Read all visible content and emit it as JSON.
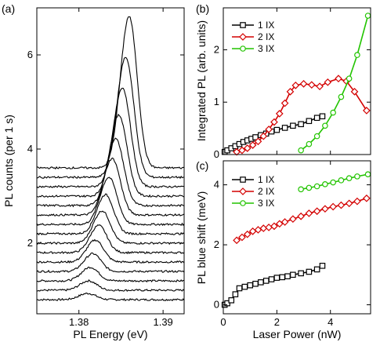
{
  "figure": {
    "background": "#ffffff",
    "axis_color": "#000000"
  },
  "chart_data": [
    {
      "id": "a",
      "panel_label": "(a)",
      "type": "line",
      "subtype": "stacked-spectra",
      "xlabel": "PL Energy (eV)",
      "ylabel": "PL counts (per 1 s)",
      "xlim": [
        1.375,
        1.3925
      ],
      "ylim": [
        0.5,
        7.0
      ],
      "x_ticks": [
        1.38,
        1.39
      ],
      "x_tick_labels": [
        "1.38",
        "1.39"
      ],
      "y_ticks": [
        2,
        4,
        6
      ],
      "y_tick_labels": [
        "2",
        "4",
        "6"
      ],
      "line_color": "#000000",
      "grid": false,
      "spectra": [
        {
          "baseline": 0.8,
          "peak_energy": 1.3812,
          "peak_height": 0.12
        },
        {
          "baseline": 1.0,
          "peak_energy": 1.3813,
          "peak_height": 0.18
        },
        {
          "baseline": 1.2,
          "peak_energy": 1.3815,
          "peak_height": 0.26
        },
        {
          "baseline": 1.4,
          "peak_energy": 1.3818,
          "peak_height": 0.34
        },
        {
          "baseline": 1.6,
          "peak_energy": 1.3821,
          "peak_height": 0.42
        },
        {
          "baseline": 1.8,
          "peak_energy": 1.3825,
          "peak_height": 0.52
        },
        {
          "baseline": 2.0,
          "peak_energy": 1.3829,
          "peak_height": 0.62
        },
        {
          "baseline": 2.2,
          "peak_energy": 1.3833,
          "peak_height": 0.75
        },
        {
          "baseline": 2.4,
          "peak_energy": 1.3837,
          "peak_height": 0.9
        },
        {
          "baseline": 2.6,
          "peak_energy": 1.3841,
          "peak_height": 1.08
        },
        {
          "baseline": 2.8,
          "peak_energy": 1.3845,
          "peak_height": 1.28
        },
        {
          "baseline": 3.0,
          "peak_energy": 1.3849,
          "peak_height": 1.55
        },
        {
          "baseline": 3.2,
          "peak_energy": 1.3853,
          "peak_height": 1.9
        },
        {
          "baseline": 3.4,
          "peak_energy": 1.3857,
          "peak_height": 2.3
        },
        {
          "baseline": 3.6,
          "peak_energy": 1.3861,
          "peak_height": 2.9
        }
      ]
    },
    {
      "id": "b",
      "panel_label": "(b)",
      "type": "line",
      "xlabel": "",
      "ylabel": "Integrated PL (arb. units)",
      "xlim": [
        0,
        5.5
      ],
      "ylim": [
        0,
        2.8
      ],
      "x_ticks": [
        0,
        2,
        4
      ],
      "x_tick_labels": [
        "",
        "",
        ""
      ],
      "y_ticks": [
        0,
        1,
        2
      ],
      "y_tick_labels": [
        "0",
        "1",
        "2"
      ],
      "grid": false,
      "legend": {
        "position": "top-left"
      },
      "series": [
        {
          "name": "1 IX",
          "color": "#000000",
          "marker": "square",
          "x": [
            0.05,
            0.15,
            0.3,
            0.45,
            0.6,
            0.75,
            0.9,
            1.05,
            1.2,
            1.4,
            1.6,
            1.8,
            2.0,
            2.3,
            2.6,
            2.9,
            3.2,
            3.5,
            3.7
          ],
          "y": [
            0.05,
            0.08,
            0.12,
            0.16,
            0.2,
            0.24,
            0.27,
            0.3,
            0.33,
            0.37,
            0.4,
            0.44,
            0.47,
            0.51,
            0.55,
            0.58,
            0.64,
            0.7,
            0.73
          ]
        },
        {
          "name": "2 IX",
          "color": "#d40000",
          "marker": "diamond",
          "x": [
            0.5,
            0.7,
            0.9,
            1.1,
            1.3,
            1.5,
            1.7,
            1.9,
            2.1,
            2.3,
            2.5,
            2.7,
            3.0,
            3.3,
            3.6,
            3.9,
            4.3,
            4.6,
            4.9,
            5.35
          ],
          "y": [
            0.05,
            0.08,
            0.12,
            0.18,
            0.25,
            0.35,
            0.48,
            0.62,
            0.78,
            0.98,
            1.2,
            1.32,
            1.35,
            1.33,
            1.3,
            1.38,
            1.45,
            1.4,
            1.2,
            0.84
          ]
        },
        {
          "name": "3 IX",
          "color": "#22c400",
          "marker": "circle",
          "x": [
            2.9,
            3.2,
            3.5,
            3.8,
            4.1,
            4.4,
            4.7,
            5.0,
            5.4
          ],
          "y": [
            0.08,
            0.2,
            0.35,
            0.55,
            0.8,
            1.1,
            1.45,
            1.9,
            2.65
          ]
        }
      ]
    },
    {
      "id": "c",
      "panel_label": "(c)",
      "type": "line",
      "xlabel": "Laser Power  (nW)",
      "ylabel": "PL blue shift  (meV)",
      "xlim": [
        0,
        5.5
      ],
      "ylim": [
        -0.3,
        4.8
      ],
      "x_ticks": [
        0,
        2,
        4
      ],
      "x_tick_labels": [
        "0",
        "2",
        "4"
      ],
      "y_ticks": [
        0,
        2,
        4
      ],
      "y_tick_labels": [
        "0",
        "2",
        "4"
      ],
      "grid": false,
      "legend": {
        "position": "top-left"
      },
      "series": [
        {
          "name": "1 IX",
          "color": "#000000",
          "marker": "square",
          "x": [
            0.05,
            0.15,
            0.3,
            0.45,
            0.6,
            0.8,
            1.0,
            1.2,
            1.4,
            1.6,
            1.8,
            2.0,
            2.2,
            2.4,
            2.6,
            2.9,
            3.2,
            3.5,
            3.7
          ],
          "y": [
            0.0,
            0.05,
            0.15,
            0.35,
            0.55,
            0.6,
            0.65,
            0.7,
            0.75,
            0.8,
            0.85,
            0.9,
            0.92,
            0.95,
            1.0,
            1.05,
            1.1,
            1.18,
            1.3
          ]
        },
        {
          "name": "2 IX",
          "color": "#d40000",
          "marker": "diamond",
          "x": [
            0.5,
            0.7,
            0.9,
            1.1,
            1.3,
            1.5,
            1.7,
            1.9,
            2.1,
            2.3,
            2.6,
            2.9,
            3.2,
            3.5,
            3.8,
            4.1,
            4.4,
            4.7,
            5.0,
            5.35
          ],
          "y": [
            2.15,
            2.25,
            2.35,
            2.45,
            2.5,
            2.55,
            2.58,
            2.62,
            2.7,
            2.76,
            2.86,
            2.95,
            3.05,
            3.12,
            3.2,
            3.27,
            3.32,
            3.38,
            3.45,
            3.55
          ]
        },
        {
          "name": "3 IX",
          "color": "#22c400",
          "marker": "circle",
          "x": [
            2.9,
            3.2,
            3.5,
            3.8,
            4.1,
            4.4,
            4.7,
            5.0,
            5.4
          ],
          "y": [
            3.85,
            3.9,
            3.95,
            4.02,
            4.08,
            4.15,
            4.22,
            4.28,
            4.35
          ]
        }
      ]
    }
  ]
}
